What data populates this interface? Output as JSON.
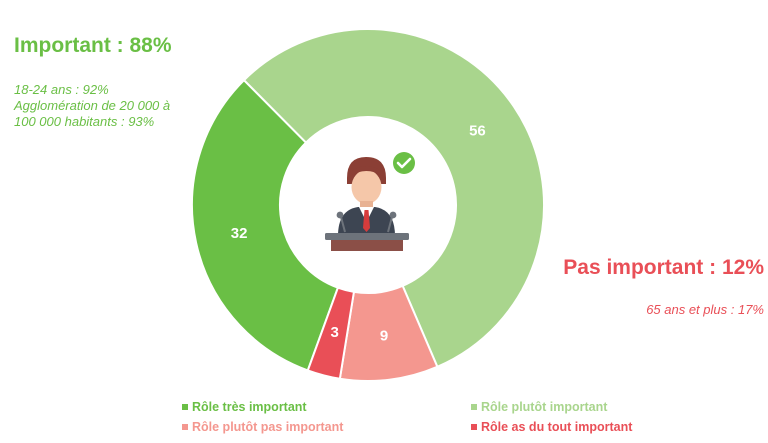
{
  "important": {
    "headline": "Important : 88%",
    "details": [
      "18-24 ans : 92%",
      "Agglomération de 20 000 à",
      "100 000 habitants : 93%"
    ],
    "color": "#6abf45"
  },
  "not_important": {
    "headline": "Pas important : 12%",
    "details": [
      "65 ans et plus : 17%"
    ],
    "color": "#e94f57"
  },
  "center_icon": "politician-at-podium-with-checkmark-icon",
  "chart_data": {
    "type": "pie",
    "donut": true,
    "start_angle_deg": 200,
    "direction": "clockwise",
    "slices": [
      {
        "label": "Rôle très important",
        "value": 32,
        "color": "#6abf45"
      },
      {
        "label": "Rôle plutôt important",
        "value": 56,
        "color": "#a9d58d"
      },
      {
        "label": "Rôle plutôt pas important",
        "value": 9,
        "color": "#f4978f"
      },
      {
        "label": "Rôle as du tout important",
        "value": 3,
        "color": "#e94f57"
      }
    ],
    "legend_position": "bottom"
  }
}
